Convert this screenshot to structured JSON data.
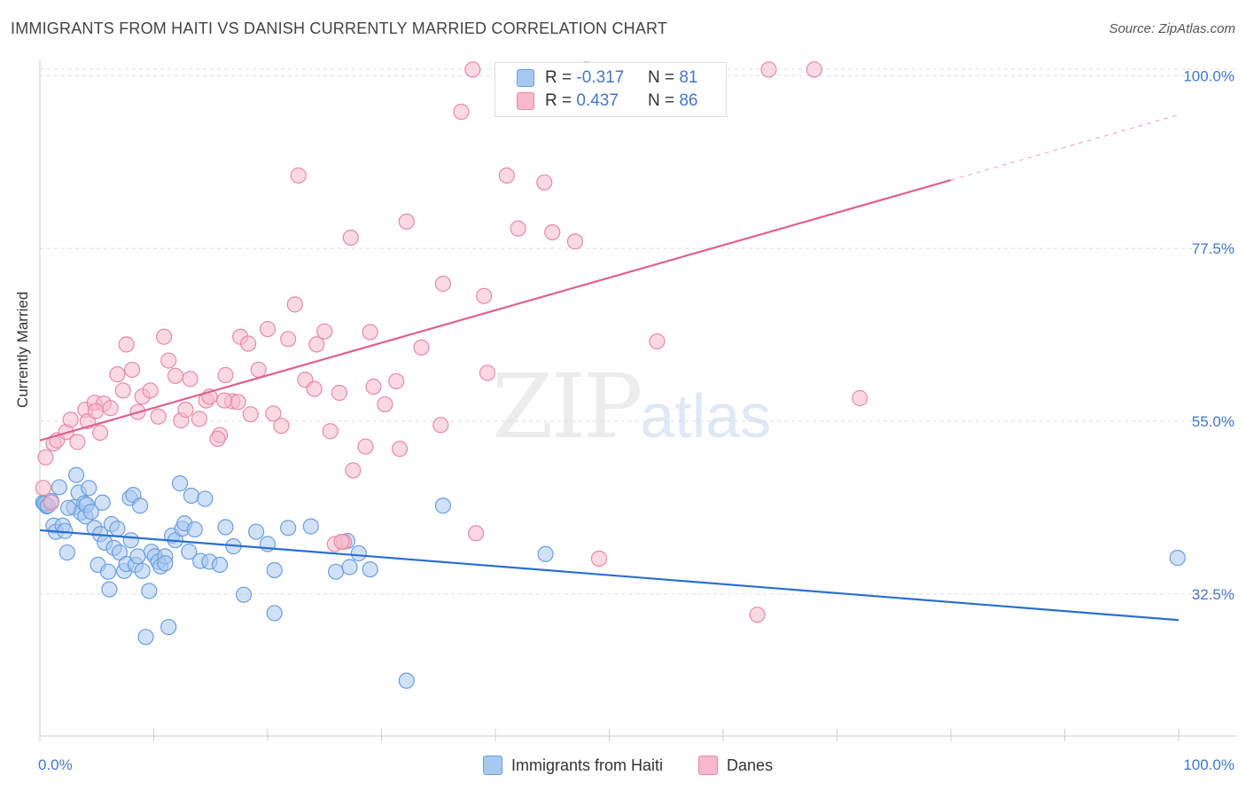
{
  "header": {
    "title": "IMMIGRANTS FROM HAITI VS DANISH CURRENTLY MARRIED CORRELATION CHART",
    "source": "Source: ZipAtlas.com"
  },
  "watermark": {
    "zip": "ZIP",
    "atlas": "atlas"
  },
  "legend": {
    "rows": [
      {
        "r_label": "R =",
        "r_value": "-0.317",
        "n_label": "N =",
        "n_value": "81",
        "color": "#a9c8f0"
      },
      {
        "r_label": "R =",
        "r_value": "0.437",
        "n_label": "N =",
        "n_value": "86",
        "color": "#f7b9cb"
      }
    ]
  },
  "bottom_legend": [
    {
      "label": "Immigrants from Haiti",
      "color": "#a9c8f0"
    },
    {
      "label": "Danes",
      "color": "#f7b9cb"
    }
  ],
  "colors": {
    "blue_fill": "#a9c8f0",
    "blue_stroke": "#6a9ee0",
    "blue_line": "#2a6fcf",
    "pink_fill": "#f7b9cb",
    "pink_stroke": "#e88aa7",
    "pink_line": "#e0608c",
    "grid": "#dddddd",
    "tick_text": "#4477cc"
  },
  "chart_data": {
    "type": "scatter",
    "title": "IMMIGRANTS FROM HAITI VS DANISH CURRENTLY MARRIED CORRELATION CHART",
    "xlabel": "",
    "ylabel": "Currently Married",
    "xlim": [
      0,
      100
    ],
    "ylim": [
      14.0,
      102.0
    ],
    "x_tick_labels": [
      "0.0%",
      "100.0%"
    ],
    "y_ticks": [
      32.5,
      55.0,
      77.5,
      100.0
    ],
    "y_tick_labels": [
      "32.5%",
      "55.0%",
      "77.5%",
      "100.0%"
    ],
    "grid": "horizontal-dashed",
    "legend": "top-center",
    "series": [
      {
        "name": "Immigrants from Haiti",
        "color": "#a9c8f0",
        "trend": {
          "x": [
            0,
            100
          ],
          "y": [
            40.8,
            29.1
          ]
        },
        "points": [
          [
            0.3,
            44.4
          ],
          [
            0.5,
            44.2
          ],
          [
            0.6,
            43.9
          ],
          [
            1.2,
            41.4
          ],
          [
            1.4,
            40.6
          ],
          [
            1.7,
            46.4
          ],
          [
            2.0,
            41.4
          ],
          [
            2.2,
            40.7
          ],
          [
            2.4,
            37.9
          ],
          [
            3.0,
            43.8
          ],
          [
            3.2,
            48.0
          ],
          [
            3.4,
            45.7
          ],
          [
            3.6,
            43.1
          ],
          [
            3.9,
            44.3
          ],
          [
            4.0,
            42.6
          ],
          [
            4.1,
            44.1
          ],
          [
            4.3,
            46.3
          ],
          [
            4.5,
            43.2
          ],
          [
            4.8,
            41.1
          ],
          [
            5.1,
            36.3
          ],
          [
            5.3,
            40.3
          ],
          [
            5.5,
            44.4
          ],
          [
            5.7,
            39.2
          ],
          [
            6.0,
            35.4
          ],
          [
            6.1,
            33.1
          ],
          [
            6.3,
            41.6
          ],
          [
            6.5,
            38.5
          ],
          [
            6.8,
            41.0
          ],
          [
            7.0,
            37.9
          ],
          [
            7.4,
            35.5
          ],
          [
            7.6,
            36.4
          ],
          [
            7.9,
            45.0
          ],
          [
            8.0,
            39.5
          ],
          [
            8.2,
            45.4
          ],
          [
            8.4,
            36.3
          ],
          [
            8.6,
            37.4
          ],
          [
            8.8,
            44.0
          ],
          [
            9.0,
            35.5
          ],
          [
            9.3,
            26.9
          ],
          [
            9.6,
            32.9
          ],
          [
            9.8,
            38.0
          ],
          [
            10.1,
            37.4
          ],
          [
            10.4,
            36.7
          ],
          [
            10.6,
            36.1
          ],
          [
            11.0,
            37.4
          ],
          [
            11.3,
            28.2
          ],
          [
            11.6,
            40.1
          ],
          [
            11.9,
            39.5
          ],
          [
            12.3,
            46.9
          ],
          [
            12.5,
            41.0
          ],
          [
            12.7,
            41.7
          ],
          [
            13.1,
            38.0
          ],
          [
            13.3,
            45.3
          ],
          [
            13.6,
            40.9
          ],
          [
            14.1,
            36.8
          ],
          [
            14.5,
            44.9
          ],
          [
            14.9,
            36.7
          ],
          [
            15.8,
            36.3
          ],
          [
            16.3,
            41.2
          ],
          [
            17.0,
            38.7
          ],
          [
            17.9,
            32.4
          ],
          [
            19.0,
            40.6
          ],
          [
            20.0,
            39.0
          ],
          [
            20.6,
            35.6
          ],
          [
            20.6,
            30.0
          ],
          [
            21.8,
            41.1
          ],
          [
            23.8,
            41.3
          ],
          [
            26.0,
            35.4
          ],
          [
            27.0,
            39.4
          ],
          [
            27.2,
            36.0
          ],
          [
            28.0,
            37.8
          ],
          [
            29.0,
            35.7
          ],
          [
            32.2,
            21.2
          ],
          [
            35.4,
            44.0
          ],
          [
            44.4,
            37.7
          ],
          [
            99.9,
            37.2
          ],
          [
            0.4,
            44.3
          ],
          [
            0.7,
            44.0
          ],
          [
            1.0,
            44.6
          ],
          [
            2.5,
            43.7
          ],
          [
            11.0,
            36.5
          ]
        ]
      },
      {
        "name": "Danes",
        "color": "#f7b9cb",
        "trend": {
          "x": [
            0,
            80
          ],
          "y": [
            52.5,
            86.4
          ]
        },
        "trend_dash": {
          "x": [
            80,
            100
          ],
          "y": [
            86.4,
            94.9
          ]
        },
        "points": [
          [
            0.3,
            46.3
          ],
          [
            0.5,
            50.3
          ],
          [
            1.0,
            44.4
          ],
          [
            1.2,
            52.1
          ],
          [
            1.5,
            52.5
          ],
          [
            2.3,
            53.6
          ],
          [
            2.7,
            55.2
          ],
          [
            3.3,
            52.3
          ],
          [
            4.0,
            56.5
          ],
          [
            4.2,
            55.0
          ],
          [
            4.8,
            57.4
          ],
          [
            5.3,
            53.5
          ],
          [
            5.6,
            57.3
          ],
          [
            6.2,
            56.7
          ],
          [
            6.8,
            61.1
          ],
          [
            7.3,
            59.0
          ],
          [
            7.6,
            65.0
          ],
          [
            8.1,
            61.7
          ],
          [
            8.6,
            56.2
          ],
          [
            9.0,
            58.2
          ],
          [
            9.7,
            59.0
          ],
          [
            10.4,
            55.6
          ],
          [
            10.9,
            66.0
          ],
          [
            11.3,
            62.9
          ],
          [
            11.9,
            60.9
          ],
          [
            12.4,
            55.1
          ],
          [
            12.8,
            56.5
          ],
          [
            13.2,
            60.5
          ],
          [
            14.0,
            55.3
          ],
          [
            14.6,
            57.7
          ],
          [
            14.9,
            58.2
          ],
          [
            15.8,
            53.2
          ],
          [
            15.6,
            52.7
          ],
          [
            16.3,
            61.0
          ],
          [
            16.9,
            57.6
          ],
          [
            17.4,
            57.5
          ],
          [
            17.6,
            66.0
          ],
          [
            18.3,
            65.1
          ],
          [
            18.5,
            55.9
          ],
          [
            19.2,
            61.7
          ],
          [
            20.0,
            67.0
          ],
          [
            20.5,
            56.0
          ],
          [
            21.2,
            54.4
          ],
          [
            21.8,
            65.7
          ],
          [
            22.4,
            70.2
          ],
          [
            22.7,
            87.0
          ],
          [
            23.3,
            60.4
          ],
          [
            24.1,
            59.2
          ],
          [
            24.3,
            65.0
          ],
          [
            25.0,
            66.7
          ],
          [
            25.5,
            53.7
          ],
          [
            25.9,
            39.0
          ],
          [
            26.3,
            58.7
          ],
          [
            26.7,
            39.3
          ],
          [
            27.3,
            78.9
          ],
          [
            27.5,
            48.6
          ],
          [
            28.6,
            51.7
          ],
          [
            29.0,
            66.6
          ],
          [
            29.3,
            59.5
          ],
          [
            30.3,
            57.2
          ],
          [
            31.3,
            60.2
          ],
          [
            31.6,
            51.4
          ],
          [
            32.2,
            81.0
          ],
          [
            33.5,
            64.6
          ],
          [
            35.2,
            54.5
          ],
          [
            35.4,
            72.9
          ],
          [
            37.0,
            95.3
          ],
          [
            38.0,
            100.8
          ],
          [
            38.3,
            40.4
          ],
          [
            39.0,
            71.3
          ],
          [
            39.3,
            61.3
          ],
          [
            41.0,
            87.0
          ],
          [
            42.0,
            80.1
          ],
          [
            44.3,
            86.1
          ],
          [
            45.0,
            79.6
          ],
          [
            47.0,
            78.4
          ],
          [
            48.0,
            100.8
          ],
          [
            49.1,
            37.1
          ],
          [
            54.2,
            65.4
          ],
          [
            63.0,
            29.8
          ],
          [
            64.0,
            100.8
          ],
          [
            68.0,
            100.8
          ],
          [
            72.0,
            58.0
          ],
          [
            26.5,
            39.3
          ],
          [
            16.2,
            57.7
          ],
          [
            4.9,
            56.3
          ]
        ]
      }
    ]
  }
}
